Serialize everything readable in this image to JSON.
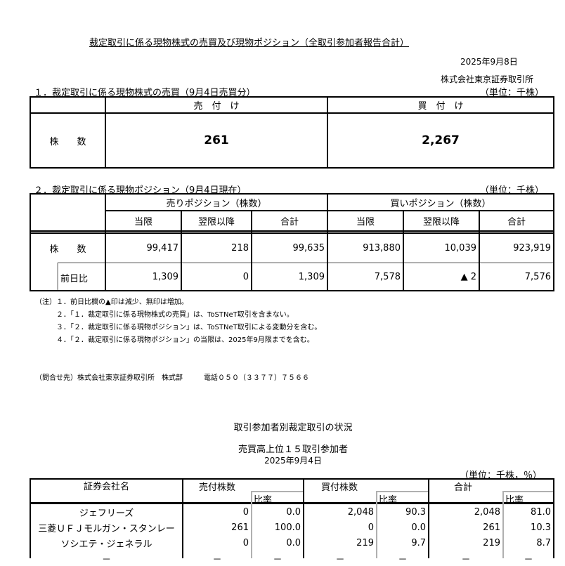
{
  "title": "裁定取引に係る現物株式の売買及び現物ポジション（全取引参加者報告合計）",
  "date": "2025年9月8日",
  "publisher": "株式会社東京証券取引所",
  "section1": {
    "heading": "１．裁定取引に係る現物株式の売買（9月4日売買分）",
    "unit": "（単位：千株）",
    "col_sell": "売　付　け",
    "col_buy": "買　付　け",
    "row_label": "株　　数",
    "sell": "261",
    "buy": "2,267"
  },
  "section2": {
    "heading": "２．裁定取引に係る現物ポジション（9月4日現在）",
    "unit": "（単位：千株）",
    "group_sell": "売りポジション（株数）",
    "group_buy": "買いポジション（株数）",
    "subcols": [
      "当限",
      "翌限以降",
      "合計",
      "当限",
      "翌限以降",
      "合計"
    ],
    "row1_label": "株　　数",
    "row1": [
      "99,417",
      "218",
      "99,635",
      "913,880",
      "10,039",
      "923,919"
    ],
    "row2_label": "前日比",
    "row2": [
      "1,309",
      "0",
      "1,309",
      "7,578",
      "▲ 2",
      "7,576"
    ]
  },
  "notes": [
    "（注）１．前日比欄の▲印は減少、無印は増加。",
    "２．「１．裁定取引に係る現物株式の売買」は、ToSTNeT取引を含まない。",
    "３．「２．裁定取引に係る現物ポジション」は、ToSTNeT取引による変動分を含む。",
    "４．「２．裁定取引に係る現物ポジション」の当限は、2025年9月限までを含む。"
  ],
  "contact": "（問合せ先）株式会社東京証券取引所　株式部　　　電話０５０（３３７７）７５６６",
  "part2": {
    "title": "取引参加者別裁定取引の状況",
    "subtitle": "売買高上位１５取引参加者",
    "date": "2025年9月4日",
    "unit": "（単位：千株，％）",
    "headers": {
      "name": "証券会社名",
      "sell": "売付株数",
      "buy": "買付株数",
      "total": "合計",
      "ratio": "比率"
    },
    "rows": [
      {
        "name": "ジェフリーズ",
        "sell": "0",
        "sell_ratio": "0.0",
        "buy": "2,048",
        "buy_ratio": "90.3",
        "total": "2,048",
        "total_ratio": "81.0"
      },
      {
        "name": "三菱ＵＦＪモルガン・スタンレー",
        "sell": "261",
        "sell_ratio": "100.0",
        "buy": "0",
        "buy_ratio": "0.0",
        "total": "261",
        "total_ratio": "10.3"
      },
      {
        "name": "ソシエテ・ジェネラル",
        "sell": "0",
        "sell_ratio": "0.0",
        "buy": "219",
        "buy_ratio": "9.7",
        "total": "219",
        "total_ratio": "8.7"
      },
      {
        "name": "－",
        "sell": "－",
        "sell_ratio": "－",
        "buy": "－",
        "buy_ratio": "－",
        "total": "－",
        "total_ratio": "－"
      }
    ]
  }
}
